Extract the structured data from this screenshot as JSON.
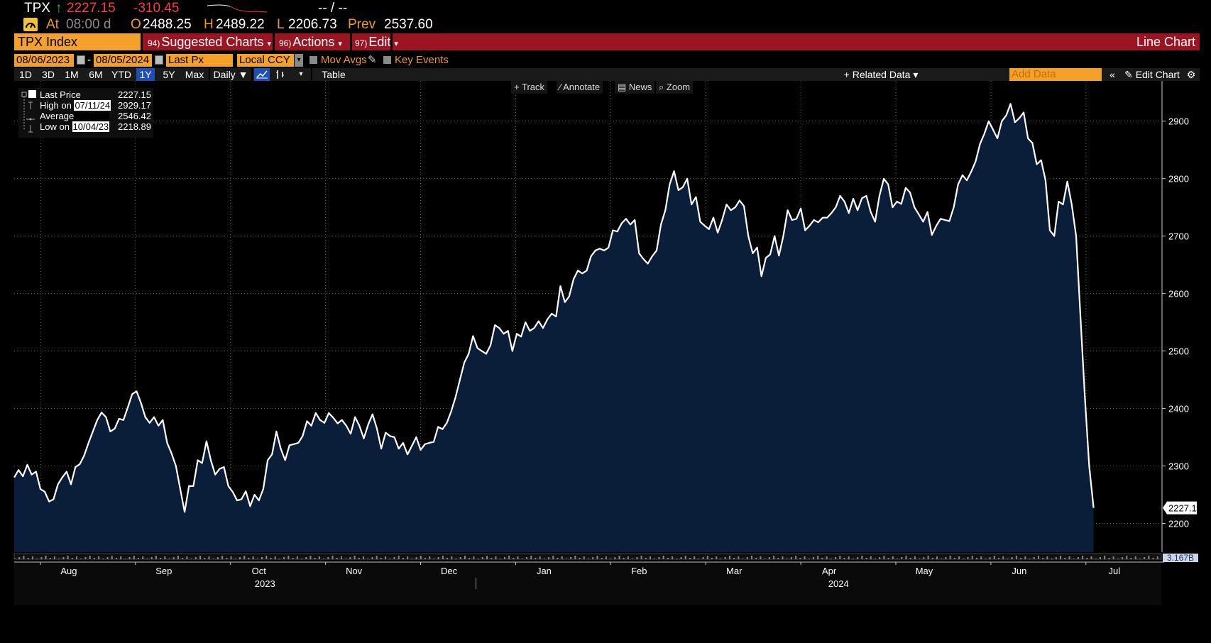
{
  "header": {
    "ticker": "TPX",
    "last_price": "2227.15",
    "change": "-310.45",
    "dash_ratio": "-- / --",
    "at_label": "At",
    "time": "08:00 d",
    "open_label": "O",
    "open": "2488.25",
    "high_label": "H",
    "high": "2489.22",
    "low_label": "L",
    "low": "2206.73",
    "prev_label": "Prev",
    "prev": "2537.60",
    "up_arrow": "↑",
    "gauge_icon": "gauge-icon"
  },
  "toolbar": {
    "security": "TPX Index",
    "suggested_num": "94)",
    "suggested_label": "Suggested Charts",
    "actions_num": "96)",
    "actions_label": "Actions",
    "edit_num": "97)",
    "edit_label": "Edit",
    "chart_type": "Line Chart"
  },
  "options": {
    "start_date": "08/06/2023",
    "dash": "-",
    "end_date": "08/05/2024",
    "field": "Last Px",
    "currency": "Local CCY",
    "mov_avgs": "Mov Avgs",
    "key_events": "Key Events"
  },
  "ranges": {
    "buttons": [
      "1D",
      "3D",
      "1M",
      "6M",
      "YTD",
      "1Y",
      "5Y",
      "Max"
    ],
    "active": "1Y",
    "frequency": "Daily ▼",
    "table": "Table",
    "related_data": "+ Related Data ▾",
    "add_data_placeholder": "Add Data",
    "edit_chart": "Edit Chart"
  },
  "chart_tools": {
    "track": "Track",
    "annotate": "Annotate",
    "news": "News",
    "zoom": "Zoom"
  },
  "legend": {
    "last_price_label": "Last Price",
    "last_price_value": "2227.15",
    "high_label": "High on",
    "high_date": "07/11/24",
    "high_value": "2929.17",
    "average_label": "Average",
    "average_value": "2546.42",
    "low_label": "Low on",
    "low_date": "10/04/23",
    "low_value": "2218.89"
  },
  "colors": {
    "line": "#ffffff",
    "fill": "#0a1e3a",
    "accent_orange": "#f3a12a",
    "toolbar_red": "#9b1421",
    "negative": "#ff3b3b",
    "positive": "#20d050"
  },
  "chart_data": {
    "type": "area",
    "title": "",
    "xlabel": "",
    "ylabel": "",
    "ylim": [
      2150,
      2970
    ],
    "y_ticks": [
      2200,
      2300,
      2400,
      2500,
      2600,
      2700,
      2800,
      2900
    ],
    "last_value_label": "2227.15",
    "x_months": [
      "Aug",
      "Sep",
      "Oct",
      "Nov",
      "Dec",
      "Jan",
      "Feb",
      "Mar",
      "Apr",
      "May",
      "Jun",
      "Jul"
    ],
    "x_years": [
      "2023",
      "2024"
    ],
    "volume_label": "3.167B",
    "grid": true,
    "series": [
      {
        "values": [
          [
            0.0,
            2280
          ],
          [
            0.2,
            2293
          ],
          [
            0.4,
            2282
          ],
          [
            0.6,
            2302
          ],
          [
            0.8,
            2285
          ],
          [
            1.0,
            2290
          ],
          [
            1.2,
            2260
          ],
          [
            1.4,
            2255
          ],
          [
            1.6,
            2238
          ],
          [
            1.8,
            2242
          ],
          [
            2.0,
            2268
          ],
          [
            2.2,
            2280
          ],
          [
            2.4,
            2290
          ],
          [
            2.6,
            2268
          ],
          [
            2.8,
            2298
          ],
          [
            3.0,
            2303
          ],
          [
            3.2,
            2318
          ],
          [
            3.4,
            2340
          ],
          [
            3.6,
            2360
          ],
          [
            3.8,
            2380
          ],
          [
            4.0,
            2393
          ],
          [
            4.2,
            2385
          ],
          [
            4.4,
            2360
          ],
          [
            4.6,
            2365
          ],
          [
            4.8,
            2382
          ],
          [
            5.0,
            2380
          ],
          [
            5.2,
            2402
          ],
          [
            5.4,
            2425
          ],
          [
            5.6,
            2430
          ],
          [
            5.8,
            2410
          ],
          [
            6.0,
            2385
          ],
          [
            6.2,
            2375
          ],
          [
            6.4,
            2385
          ],
          [
            6.6,
            2370
          ],
          [
            6.8,
            2380
          ],
          [
            7.0,
            2340
          ],
          [
            7.2,
            2322
          ],
          [
            7.4,
            2300
          ],
          [
            7.6,
            2260
          ],
          [
            7.8,
            2220
          ],
          [
            8.0,
            2265
          ],
          [
            8.2,
            2265
          ],
          [
            8.4,
            2310
          ],
          [
            8.6,
            2305
          ],
          [
            8.8,
            2343
          ],
          [
            9.0,
            2310
          ],
          [
            9.2,
            2285
          ],
          [
            9.4,
            2295
          ],
          [
            9.6,
            2298
          ],
          [
            9.8,
            2265
          ],
          [
            10.0,
            2255
          ],
          [
            10.2,
            2240
          ],
          [
            10.4,
            2242
          ],
          [
            10.6,
            2256
          ],
          [
            10.8,
            2230
          ],
          [
            11.0,
            2250
          ],
          [
            11.2,
            2240
          ],
          [
            11.4,
            2260
          ],
          [
            11.6,
            2310
          ],
          [
            11.8,
            2320
          ],
          [
            12.0,
            2360
          ],
          [
            12.2,
            2330
          ],
          [
            12.4,
            2310
          ],
          [
            12.6,
            2336
          ],
          [
            12.8,
            2338
          ],
          [
            13.0,
            2340
          ],
          [
            13.2,
            2352
          ],
          [
            13.4,
            2378
          ],
          [
            13.6,
            2370
          ],
          [
            13.8,
            2392
          ],
          [
            14.0,
            2380
          ],
          [
            14.2,
            2375
          ],
          [
            14.4,
            2392
          ],
          [
            14.6,
            2384
          ],
          [
            14.8,
            2374
          ],
          [
            15.0,
            2380
          ],
          [
            15.2,
            2370
          ],
          [
            15.4,
            2356
          ],
          [
            15.6,
            2385
          ],
          [
            15.8,
            2370
          ],
          [
            16.0,
            2348
          ],
          [
            16.2,
            2372
          ],
          [
            16.4,
            2390
          ],
          [
            16.6,
            2365
          ],
          [
            16.8,
            2330
          ],
          [
            17.0,
            2358
          ],
          [
            17.2,
            2352
          ],
          [
            17.4,
            2350
          ],
          [
            17.6,
            2330
          ],
          [
            17.8,
            2340
          ],
          [
            18.0,
            2320
          ],
          [
            18.2,
            2335
          ],
          [
            18.4,
            2350
          ],
          [
            18.6,
            2328
          ],
          [
            18.8,
            2338
          ],
          [
            19.0,
            2340
          ],
          [
            19.2,
            2342
          ],
          [
            19.4,
            2368
          ],
          [
            19.6,
            2364
          ],
          [
            19.8,
            2375
          ],
          [
            20.0,
            2395
          ],
          [
            20.2,
            2420
          ],
          [
            20.4,
            2450
          ],
          [
            20.6,
            2480
          ],
          [
            20.8,
            2495
          ],
          [
            21.0,
            2526
          ],
          [
            21.2,
            2505
          ],
          [
            21.4,
            2500
          ],
          [
            21.6,
            2495
          ],
          [
            21.8,
            2510
          ],
          [
            22.0,
            2545
          ],
          [
            22.2,
            2540
          ],
          [
            22.4,
            2530
          ],
          [
            22.6,
            2535
          ],
          [
            22.8,
            2500
          ],
          [
            23.0,
            2530
          ],
          [
            23.2,
            2525
          ],
          [
            23.4,
            2550
          ],
          [
            23.6,
            2535
          ],
          [
            23.8,
            2540
          ],
          [
            24.0,
            2552
          ],
          [
            24.2,
            2540
          ],
          [
            24.4,
            2555
          ],
          [
            24.6,
            2565
          ],
          [
            24.8,
            2560
          ],
          [
            25.0,
            2613
          ],
          [
            25.2,
            2585
          ],
          [
            25.4,
            2595
          ],
          [
            25.6,
            2625
          ],
          [
            25.8,
            2640
          ],
          [
            26.0,
            2635
          ],
          [
            26.2,
            2640
          ],
          [
            26.4,
            2665
          ],
          [
            26.6,
            2675
          ],
          [
            26.8,
            2678
          ],
          [
            27.0,
            2675
          ],
          [
            27.2,
            2680
          ],
          [
            27.4,
            2710
          ],
          [
            27.6,
            2708
          ],
          [
            27.8,
            2722
          ],
          [
            28.0,
            2730
          ],
          [
            28.2,
            2720
          ],
          [
            28.4,
            2728
          ],
          [
            28.6,
            2670
          ],
          [
            28.8,
            2660
          ],
          [
            29.0,
            2652
          ],
          [
            29.2,
            2665
          ],
          [
            29.4,
            2675
          ],
          [
            29.6,
            2720
          ],
          [
            29.8,
            2745
          ],
          [
            30.0,
            2790
          ],
          [
            30.2,
            2813
          ],
          [
            30.4,
            2780
          ],
          [
            30.6,
            2785
          ],
          [
            30.8,
            2800
          ],
          [
            31.0,
            2755
          ],
          [
            31.2,
            2768
          ],
          [
            31.4,
            2725
          ],
          [
            31.6,
            2718
          ],
          [
            31.8,
            2712
          ],
          [
            32.0,
            2732
          ],
          [
            32.2,
            2706
          ],
          [
            32.4,
            2728
          ],
          [
            32.6,
            2755
          ],
          [
            32.8,
            2745
          ],
          [
            33.0,
            2750
          ],
          [
            33.2,
            2762
          ],
          [
            33.4,
            2752
          ],
          [
            33.6,
            2700
          ],
          [
            33.8,
            2670
          ],
          [
            34.0,
            2680
          ],
          [
            34.2,
            2630
          ],
          [
            34.4,
            2662
          ],
          [
            34.6,
            2668
          ],
          [
            34.8,
            2700
          ],
          [
            35.0,
            2666
          ],
          [
            35.2,
            2700
          ],
          [
            35.4,
            2745
          ],
          [
            35.6,
            2728
          ],
          [
            35.8,
            2730
          ],
          [
            36.0,
            2748
          ],
          [
            36.2,
            2710
          ],
          [
            36.4,
            2718
          ],
          [
            36.6,
            2728
          ],
          [
            36.8,
            2724
          ],
          [
            37.0,
            2732
          ],
          [
            37.2,
            2732
          ],
          [
            37.4,
            2740
          ],
          [
            37.6,
            2750
          ],
          [
            37.8,
            2770
          ],
          [
            38.0,
            2760
          ],
          [
            38.2,
            2740
          ],
          [
            38.4,
            2765
          ],
          [
            38.6,
            2745
          ],
          [
            38.8,
            2766
          ],
          [
            39.0,
            2770
          ],
          [
            39.2,
            2742
          ],
          [
            39.4,
            2725
          ],
          [
            39.6,
            2770
          ],
          [
            39.8,
            2800
          ],
          [
            40.0,
            2790
          ],
          [
            40.2,
            2750
          ],
          [
            40.4,
            2760
          ],
          [
            40.6,
            2756
          ],
          [
            40.8,
            2784
          ],
          [
            41.0,
            2776
          ],
          [
            41.2,
            2750
          ],
          [
            41.4,
            2738
          ],
          [
            41.6,
            2725
          ],
          [
            41.8,
            2742
          ],
          [
            42.0,
            2702
          ],
          [
            42.2,
            2718
          ],
          [
            42.4,
            2730
          ],
          [
            42.6,
            2728
          ],
          [
            42.8,
            2726
          ],
          [
            43.0,
            2750
          ],
          [
            43.2,
            2790
          ],
          [
            43.4,
            2806
          ],
          [
            43.6,
            2797
          ],
          [
            43.8,
            2812
          ],
          [
            44.0,
            2830
          ],
          [
            44.2,
            2860
          ],
          [
            44.4,
            2878
          ],
          [
            44.6,
            2900
          ],
          [
            44.8,
            2885
          ],
          [
            45.0,
            2870
          ],
          [
            45.2,
            2900
          ],
          [
            45.4,
            2910
          ],
          [
            45.6,
            2930
          ],
          [
            45.8,
            2898
          ],
          [
            46.0,
            2905
          ],
          [
            46.2,
            2915
          ],
          [
            46.4,
            2870
          ],
          [
            46.6,
            2862
          ],
          [
            46.8,
            2825
          ],
          [
            47.0,
            2832
          ],
          [
            47.2,
            2797
          ],
          [
            47.4,
            2710
          ],
          [
            47.6,
            2700
          ],
          [
            47.8,
            2760
          ],
          [
            48.0,
            2755
          ],
          [
            48.2,
            2795
          ],
          [
            48.4,
            2755
          ],
          [
            48.6,
            2700
          ],
          [
            48.8,
            2560
          ],
          [
            49.0,
            2420
          ],
          [
            49.2,
            2300
          ],
          [
            49.4,
            2227
          ]
        ]
      }
    ]
  }
}
